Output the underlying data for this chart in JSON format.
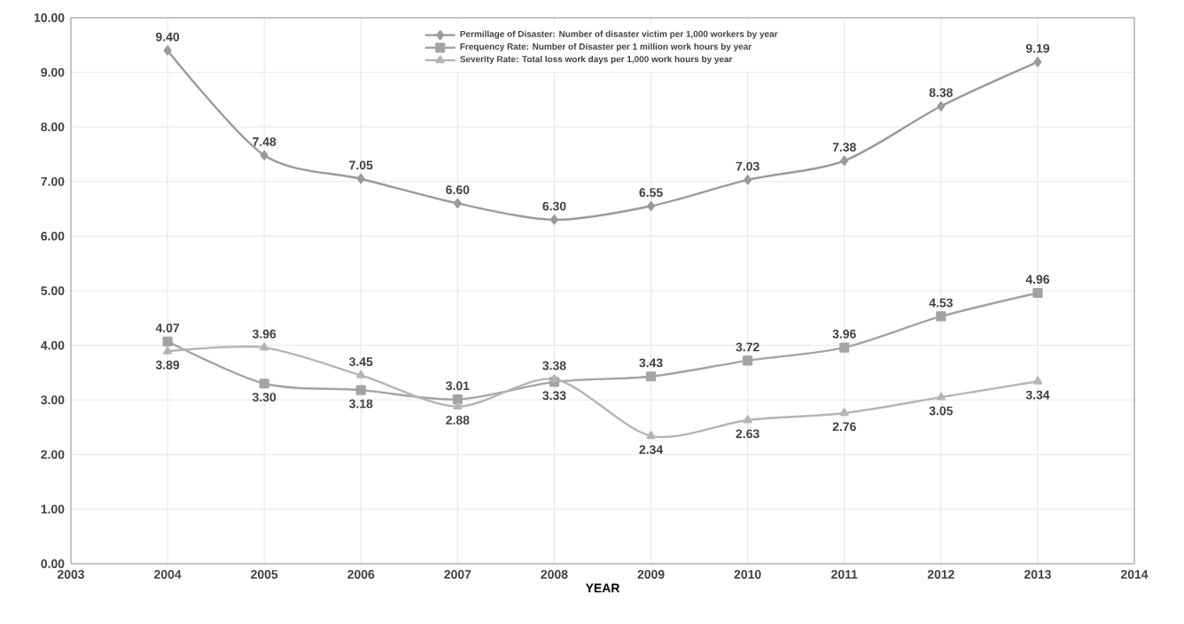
{
  "chart_data": {
    "type": "line",
    "xlabel": "YEAR",
    "x": [
      2004,
      2005,
      2006,
      2007,
      2008,
      2009,
      2010,
      2011,
      2012,
      2013
    ],
    "series": [
      {
        "name": "Permillage of Disaster: Number of disaster victim per 1,000 workers by year",
        "color": "#9a9a9a",
        "marker": "diamond",
        "values": [
          9.4,
          7.48,
          7.05,
          6.6,
          6.3,
          6.55,
          7.03,
          7.38,
          8.38,
          9.19
        ],
        "value_labels": [
          "9.40",
          "7.48",
          "7.05",
          "6.60",
          "6.30",
          "6.55",
          "7.03",
          "7.38",
          "8.38",
          "9.19"
        ]
      },
      {
        "name": "Frequency Rate: Number of Disaster per 1 million work hours by year",
        "color": "#a3a3a3",
        "marker": "square",
        "values": [
          4.07,
          3.3,
          3.18,
          3.01,
          3.33,
          3.43,
          3.72,
          3.96,
          4.53,
          4.96
        ],
        "value_labels": [
          "4.07",
          "3.30",
          "3.18",
          "3.01",
          "3.33",
          "3.43",
          "3.72",
          "3.96",
          "4.53",
          "4.96"
        ]
      },
      {
        "name": "Severity Rate: Total loss work days per 1,000 work hours by year",
        "color": "#b5b5b5",
        "marker": "triangle",
        "values": [
          3.89,
          3.96,
          3.45,
          2.88,
          3.38,
          2.34,
          2.63,
          2.76,
          3.05,
          3.34
        ],
        "value_labels": [
          "3.89",
          "3.96",
          "3.45",
          "2.88",
          "3.38",
          "2.34",
          "2.63",
          "2.76",
          "3.05",
          "3.34"
        ]
      }
    ],
    "xlim": [
      2003,
      2014
    ],
    "xticks": [
      2003,
      2004,
      2005,
      2006,
      2007,
      2008,
      2009,
      2010,
      2011,
      2012,
      2013,
      2014
    ],
    "ylim": [
      0,
      10
    ],
    "yticks": [
      {
        "value": 0,
        "label": "0.00"
      },
      {
        "value": 1,
        "label": "1.00"
      },
      {
        "value": 2,
        "label": "2.00"
      },
      {
        "value": 3,
        "label": "3.00"
      },
      {
        "value": 4,
        "label": "4.00"
      },
      {
        "value": 5,
        "label": "5.00"
      },
      {
        "value": 6,
        "label": "6.00"
      },
      {
        "value": 7,
        "label": "7.00"
      },
      {
        "value": 8,
        "label": "8.00"
      },
      {
        "value": 9,
        "label": "9.00"
      },
      {
        "value": 10,
        "label": "10.00"
      }
    ],
    "grid": true,
    "legend": "top",
    "line_style": "solid"
  }
}
